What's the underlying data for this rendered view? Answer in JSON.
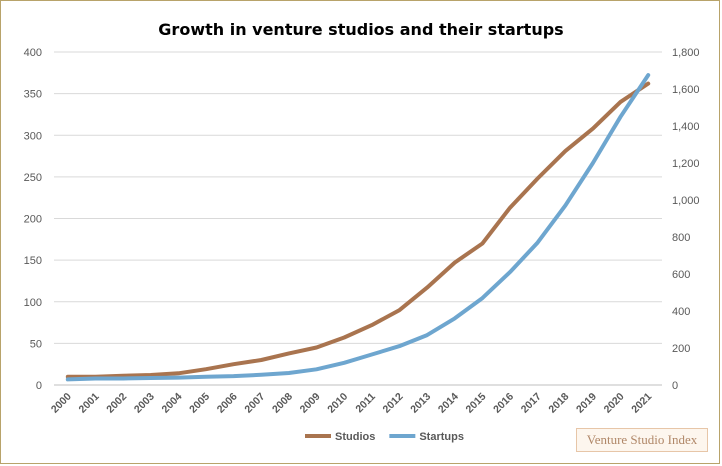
{
  "chart_data": {
    "type": "line",
    "title": "Growth in venture studios and their startups",
    "categories": [
      "2000",
      "2001",
      "2002",
      "2003",
      "2004",
      "2005",
      "2006",
      "2007",
      "2008",
      "2009",
      "2010",
      "2011",
      "2012",
      "2013",
      "2014",
      "2015",
      "2016",
      "2017",
      "2018",
      "2019",
      "2020",
      "2021"
    ],
    "series": [
      {
        "name": "Studios",
        "axis": "left",
        "color": "#a9744f",
        "values": [
          10,
          10,
          11,
          12,
          14,
          19,
          25,
          30,
          38,
          45,
          57,
          72,
          90,
          117,
          147,
          170,
          213,
          248,
          281,
          308,
          340,
          362
        ]
      },
      {
        "name": "Startups",
        "axis": "right",
        "color": "#6ea6cf",
        "values": [
          30,
          35,
          35,
          38,
          40,
          45,
          48,
          55,
          65,
          85,
          120,
          165,
          210,
          270,
          360,
          470,
          610,
          770,
          970,
          1200,
          1450,
          1675
        ]
      }
    ],
    "y_left": {
      "min": 0,
      "max": 400,
      "ticks": [
        "0",
        "50",
        "100",
        "150",
        "200",
        "250",
        "300",
        "350",
        "400"
      ]
    },
    "y_right": {
      "min": 0,
      "max": 1800,
      "ticks": [
        "0",
        "200",
        "400",
        "600",
        "800",
        "1,000",
        "1,200",
        "1,400",
        "1,600",
        "1,800"
      ]
    },
    "grid": true,
    "legend": "bottom"
  },
  "watermark": "Venture Studio Index"
}
